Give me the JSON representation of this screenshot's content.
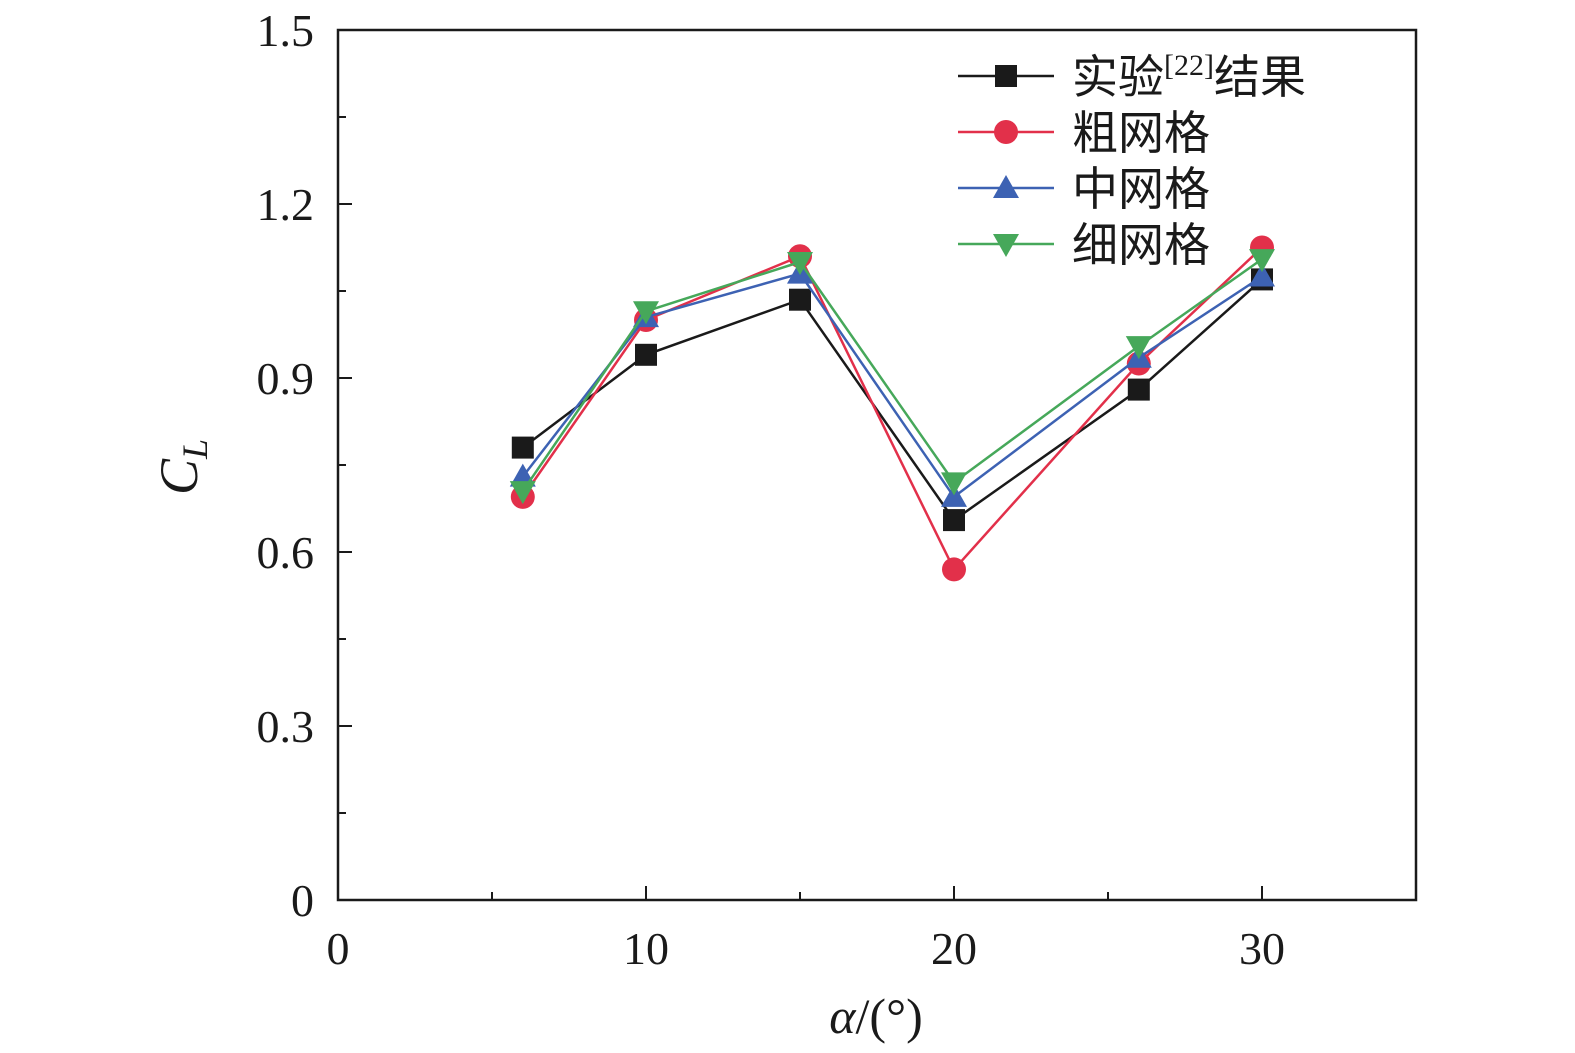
{
  "chart_data": {
    "type": "line",
    "title": "",
    "xlabel_symbol": "α",
    "xlabel_unit": "/(°)",
    "ylabel_main": "C",
    "ylabel_sub": "L",
    "xlim": [
      0,
      35
    ],
    "ylim": [
      0,
      1.5
    ],
    "x_ticks": [
      0,
      10,
      20,
      30
    ],
    "x_minor_ticks": [
      5,
      15,
      25
    ],
    "y_ticks": [
      0,
      0.3,
      0.6,
      0.9,
      1.2,
      1.5
    ],
    "y_tick_labels": [
      "0",
      "0.3",
      "0.6",
      "0.9",
      "1.2",
      "1.5"
    ],
    "y_minor_ticks": [
      0.15,
      0.45,
      0.75,
      1.05,
      1.35
    ],
    "x": [
      6,
      10,
      15,
      20,
      26,
      30
    ],
    "grid": false,
    "legend_position": "top-right",
    "series": [
      {
        "name": "实验[22]结果",
        "name_prefix": "实验",
        "name_sup": "[22]",
        "name_suffix": "结果",
        "color": "#1a1a1a",
        "marker": "square",
        "values": [
          0.78,
          0.94,
          1.035,
          0.655,
          0.88,
          1.07
        ]
      },
      {
        "name": "粗网格",
        "color": "#e2304a",
        "marker": "circle",
        "values": [
          0.695,
          1.0,
          1.11,
          0.57,
          0.925,
          1.125
        ]
      },
      {
        "name": "中网格",
        "color": "#3d62b3",
        "marker": "triangle-up",
        "values": [
          0.73,
          1.005,
          1.08,
          0.695,
          0.935,
          1.075
        ]
      },
      {
        "name": "细网格",
        "color": "#46a85a",
        "marker": "triangle-down",
        "values": [
          0.705,
          1.015,
          1.1,
          0.72,
          0.955,
          1.105
        ]
      }
    ]
  }
}
